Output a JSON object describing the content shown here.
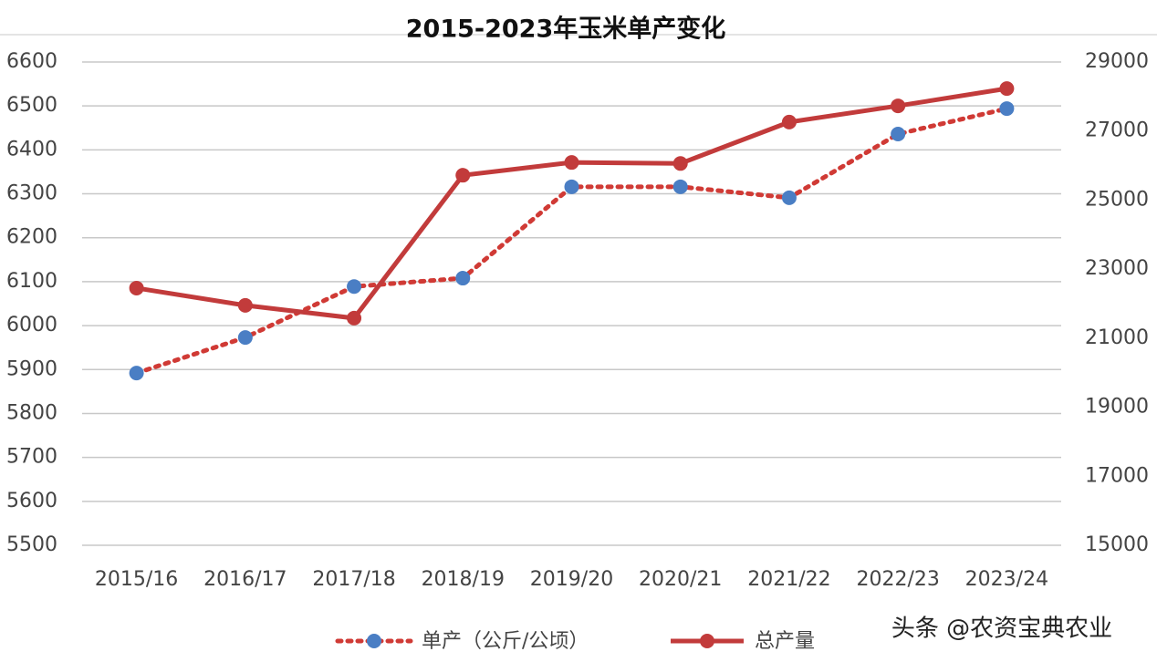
{
  "chart_data": {
    "type": "line",
    "title": "2015-2023年玉米单产变化",
    "categories": [
      "2015/16",
      "2016/17",
      "2017/18",
      "2018/19",
      "2019/20",
      "2020/21",
      "2021/22",
      "2022/23",
      "2023/24"
    ],
    "series": [
      {
        "name": "单产（公斤/公顷）",
        "color": "#d03a35",
        "marker_color": "#4a7ec4",
        "line_style": "dotted",
        "values": [
          5892,
          5973,
          6089,
          6108,
          6316,
          6316,
          6291,
          6436,
          6494
        ]
      },
      {
        "name": "总产量",
        "color": "#c23b3b",
        "marker_color": "#c23b3b",
        "line_style": "solid",
        "axis": "y2",
        "values": [
          22450,
          21950,
          21580,
          25720,
          26090,
          26060,
          27260,
          27730,
          28230
        ]
      }
    ],
    "ylim": [
      5500,
      6600
    ],
    "yticks": [
      5500,
      5600,
      5700,
      5800,
      5900,
      6000,
      6100,
      6200,
      6300,
      6400,
      6500,
      6600
    ],
    "y2lim": [
      15000,
      29000
    ],
    "y2ticks": [
      15000,
      17000,
      19000,
      21000,
      23000,
      25000,
      27000,
      29000
    ],
    "grid": true,
    "watermark": "头条 @农资宝典农业"
  }
}
